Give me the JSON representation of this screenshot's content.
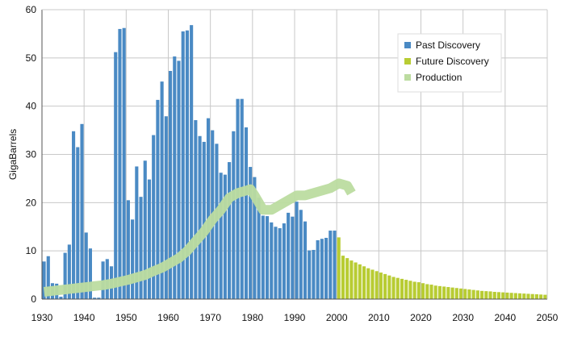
{
  "chart_data": {
    "type": "bar",
    "title": "",
    "xlabel": "",
    "ylabel": "GigaBarrels",
    "xlim": [
      1930,
      2050
    ],
    "ylim": [
      0,
      60
    ],
    "x_ticks": [
      1930,
      1940,
      1950,
      1960,
      1970,
      1980,
      1990,
      2000,
      2010,
      2020,
      2030,
      2040,
      2050
    ],
    "y_ticks": [
      0,
      10,
      20,
      30,
      40,
      50,
      60
    ],
    "grid": true,
    "legend_position": "top-right",
    "colors": {
      "past_discovery": "#4a8ac4",
      "future_discovery": "#b8cc33",
      "production": "#bcdca0",
      "grid": "#c8c8c8",
      "axis": "#555555"
    },
    "series": [
      {
        "name": "Past Discovery",
        "kind": "bar",
        "x": [
          1930,
          1931,
          1932,
          1933,
          1934,
          1935,
          1936,
          1937,
          1938,
          1939,
          1940,
          1941,
          1942,
          1943,
          1944,
          1945,
          1946,
          1947,
          1948,
          1949,
          1950,
          1951,
          1952,
          1953,
          1954,
          1955,
          1956,
          1957,
          1958,
          1959,
          1960,
          1961,
          1962,
          1963,
          1964,
          1965,
          1966,
          1967,
          1968,
          1969,
          1970,
          1971,
          1972,
          1973,
          1974,
          1975,
          1976,
          1977,
          1978,
          1979,
          1980,
          1981,
          1982,
          1983,
          1984,
          1985,
          1986,
          1987,
          1988,
          1989,
          1990,
          1991,
          1992,
          1993,
          1994,
          1995,
          1996,
          1997,
          1998,
          1999
        ],
        "values": [
          7.8,
          8.9,
          3.3,
          3.2,
          0.5,
          9.6,
          11.3,
          34.8,
          31.5,
          36.3,
          13.8,
          10.5,
          0.3,
          0.3,
          7.8,
          8.3,
          6.8,
          51.2,
          56.0,
          56.2,
          20.5,
          16.5,
          27.5,
          21.2,
          28.7,
          24.8,
          34.0,
          41.3,
          45.1,
          37.9,
          47.3,
          50.3,
          49.4,
          55.5,
          55.7,
          56.8,
          37.1,
          33.8,
          32.6,
          37.5,
          35.0,
          32.2,
          26.2,
          25.8,
          28.4,
          34.8,
          41.5,
          41.5,
          35.6,
          27.4,
          25.3,
          21.0,
          17.3,
          17.2,
          15.9,
          15.0,
          14.7,
          15.7,
          17.9,
          17.1,
          20.2,
          18.5,
          16.1,
          10.1,
          10.2,
          12.2,
          12.5,
          12.7,
          14.2,
          14.2
        ]
      },
      {
        "name": "Future Discovery",
        "kind": "bar",
        "x": [
          2000,
          2001,
          2002,
          2003,
          2004,
          2005,
          2006,
          2007,
          2008,
          2009,
          2010,
          2011,
          2012,
          2013,
          2014,
          2015,
          2016,
          2017,
          2018,
          2019,
          2020,
          2021,
          2022,
          2023,
          2024,
          2025,
          2026,
          2027,
          2028,
          2029,
          2030,
          2031,
          2032,
          2033,
          2034,
          2035,
          2036,
          2037,
          2038,
          2039,
          2040,
          2041,
          2042,
          2043,
          2044,
          2045,
          2046,
          2047,
          2048,
          2049
        ],
        "values": [
          12.8,
          9.0,
          8.5,
          8.0,
          7.6,
          7.2,
          6.8,
          6.4,
          6.1,
          5.8,
          5.5,
          5.2,
          4.9,
          4.6,
          4.4,
          4.2,
          4.0,
          3.8,
          3.6,
          3.5,
          3.3,
          3.1,
          3.0,
          2.8,
          2.7,
          2.6,
          2.5,
          2.4,
          2.3,
          2.2,
          2.1,
          2.0,
          1.9,
          1.8,
          1.7,
          1.65,
          1.6,
          1.5,
          1.45,
          1.4,
          1.35,
          1.3,
          1.25,
          1.2,
          1.15,
          1.1,
          1.05,
          1.0,
          0.95,
          0.9
        ]
      },
      {
        "name": "Production",
        "kind": "line",
        "x": [
          1930,
          1932,
          1934,
          1936,
          1938,
          1940,
          1942,
          1944,
          1946,
          1948,
          1950,
          1952,
          1954,
          1956,
          1958,
          1960,
          1962,
          1964,
          1966,
          1968,
          1970,
          1972,
          1974,
          1976,
          1978,
          1979,
          1980,
          1981,
          1982,
          1984,
          1986,
          1988,
          1990,
          1992,
          1994,
          1996,
          1998,
          2000,
          2002,
          2003
        ],
        "values": [
          1.5,
          1.7,
          1.9,
          2.1,
          2.3,
          2.5,
          2.7,
          2.9,
          3.2,
          3.6,
          4.0,
          4.5,
          5.0,
          5.8,
          6.5,
          7.5,
          8.5,
          10.0,
          12.0,
          14.0,
          16.5,
          18.5,
          21.0,
          22.0,
          22.5,
          22.8,
          21.5,
          20.0,
          18.5,
          18.5,
          19.5,
          20.5,
          21.5,
          21.5,
          22.0,
          22.5,
          23.0,
          24.0,
          23.5,
          22.0
        ]
      }
    ]
  }
}
